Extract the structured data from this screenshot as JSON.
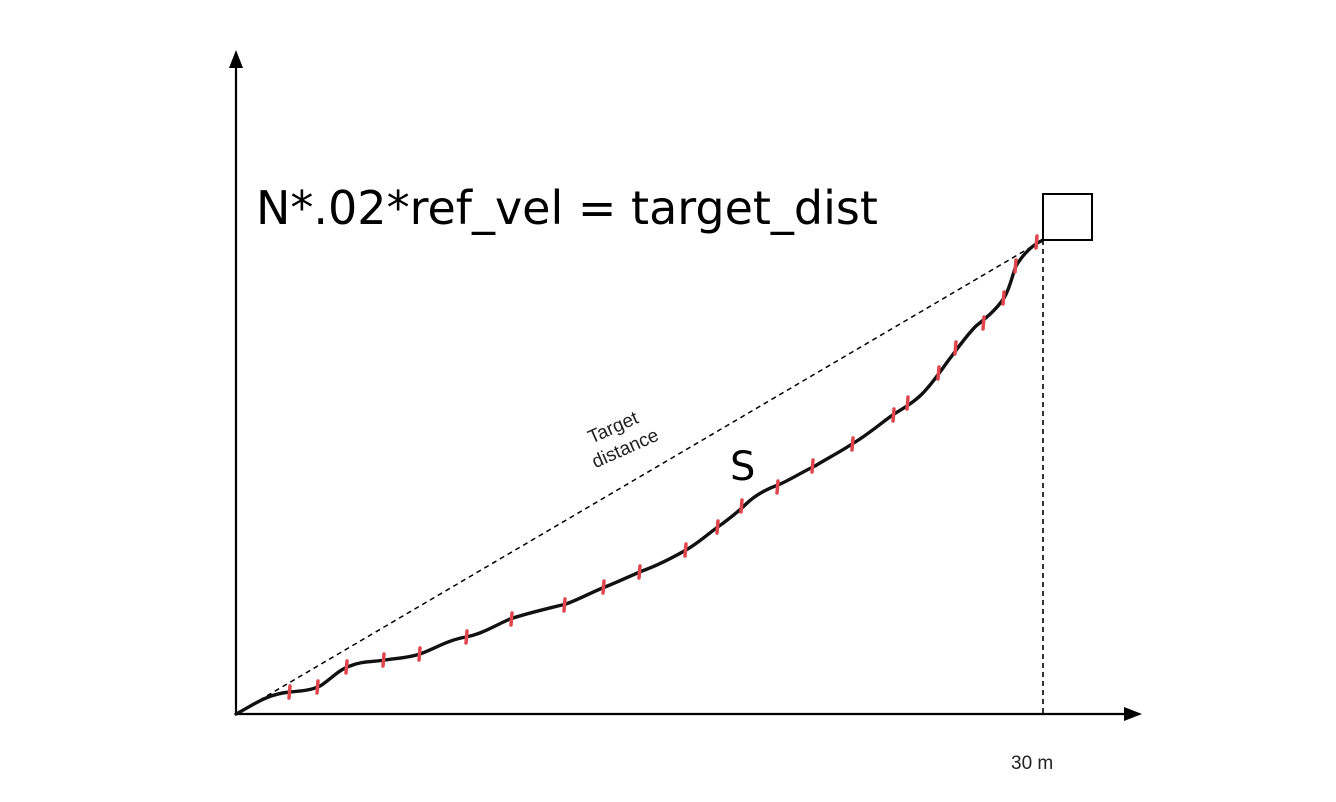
{
  "diagram": {
    "formula": "N*.02*ref_vel = target_dist",
    "path_label": "S",
    "target_line_label": [
      "Target",
      "distance"
    ],
    "x_tick_label": "30 m",
    "colors": {
      "axes": "#000000",
      "path": "#111111",
      "markers": "#e0464e",
      "target_line": "#000000"
    },
    "icons": {
      "target": "square-target-icon",
      "x_axis_arrow": "arrow-right-icon",
      "y_axis_arrow": "arrow-up-icon"
    }
  }
}
